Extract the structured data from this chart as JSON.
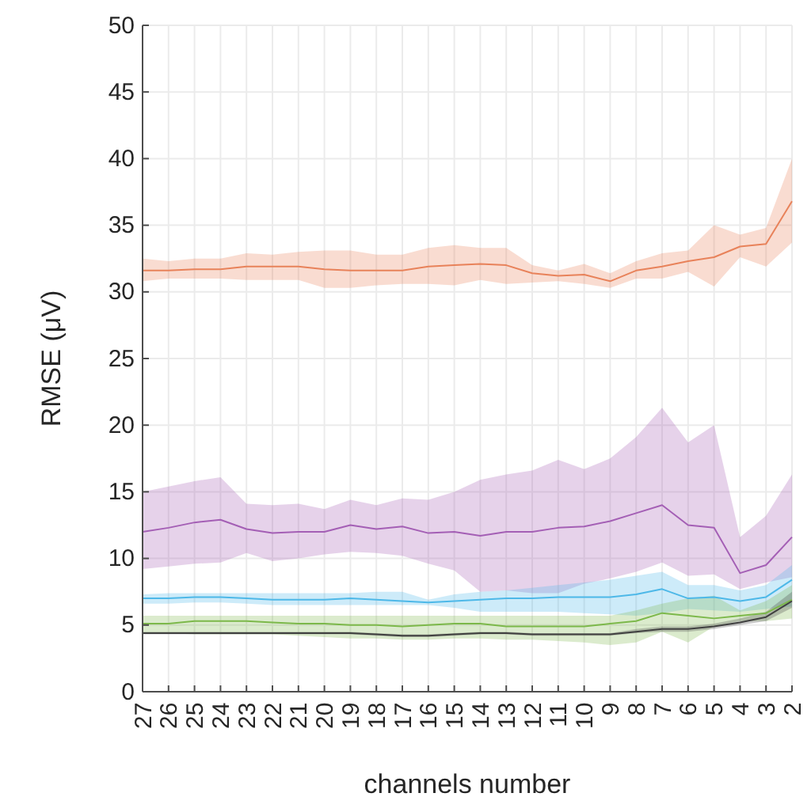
{
  "chart_data": {
    "type": "line",
    "xlabel": "channels number",
    "ylabel": "RMSE (μV)",
    "x": [
      27,
      26,
      25,
      24,
      23,
      22,
      21,
      20,
      19,
      18,
      17,
      16,
      15,
      14,
      13,
      12,
      11,
      10,
      9,
      8,
      7,
      6,
      5,
      4,
      3,
      2
    ],
    "xlim": [
      27,
      2
    ],
    "xticks": [
      27,
      26,
      25,
      24,
      23,
      22,
      21,
      20,
      19,
      18,
      17,
      16,
      15,
      14,
      13,
      12,
      11,
      10,
      9,
      8,
      7,
      6,
      5,
      4,
      3,
      2
    ],
    "ylim": [
      0,
      50
    ],
    "yticks": [
      0,
      5,
      10,
      15,
      20,
      25,
      30,
      35,
      40,
      45,
      50
    ],
    "grid": true,
    "line_style": "solid",
    "series": [
      {
        "color": "#e8825a",
        "values": [
          31.6,
          31.6,
          31.7,
          31.7,
          31.9,
          31.9,
          31.9,
          31.7,
          31.6,
          31.6,
          31.6,
          31.9,
          32.0,
          32.1,
          32.0,
          31.4,
          31.2,
          31.3,
          30.8,
          31.6,
          31.9,
          32.3,
          32.6,
          33.4,
          33.6,
          36.8
        ],
        "upper": [
          32.5,
          32.3,
          32.5,
          32.5,
          32.9,
          32.8,
          33.0,
          33.1,
          33.1,
          32.8,
          32.8,
          33.3,
          33.5,
          33.3,
          33.3,
          32.0,
          31.6,
          32.1,
          31.4,
          32.3,
          32.9,
          33.1,
          35.0,
          34.3,
          34.8,
          40.0
        ],
        "lower": [
          30.8,
          31.0,
          31.0,
          31.0,
          30.9,
          30.9,
          30.9,
          30.3,
          30.3,
          30.5,
          30.6,
          30.6,
          30.5,
          30.9,
          30.6,
          30.7,
          30.8,
          30.6,
          30.3,
          31.0,
          31.0,
          31.5,
          30.4,
          32.6,
          31.9,
          33.7
        ]
      },
      {
        "color": "#a45fb5",
        "values": [
          12.0,
          12.3,
          12.7,
          12.9,
          12.2,
          11.9,
          12.0,
          12.0,
          12.5,
          12.2,
          12.4,
          11.9,
          12.0,
          11.7,
          12.0,
          12.0,
          12.3,
          12.4,
          12.8,
          13.4,
          14.0,
          12.5,
          12.3,
          8.9,
          9.5,
          11.6
        ],
        "upper": [
          15.0,
          15.4,
          15.8,
          16.1,
          14.1,
          14.0,
          14.1,
          13.7,
          14.4,
          14.0,
          14.5,
          14.4,
          15.0,
          15.9,
          16.3,
          16.6,
          17.4,
          16.7,
          17.5,
          19.1,
          21.3,
          18.7,
          20.0,
          11.6,
          13.2,
          16.3
        ],
        "lower": [
          9.2,
          9.4,
          9.6,
          9.7,
          10.4,
          9.8,
          10.0,
          10.3,
          10.5,
          10.4,
          10.2,
          9.6,
          9.1,
          7.5,
          7.6,
          7.4,
          7.4,
          8.1,
          8.5,
          9.0,
          9.7,
          8.7,
          8.8,
          7.7,
          8.2,
          8.6
        ]
      },
      {
        "color": "#4db8e8",
        "values": [
          7.0,
          7.0,
          7.1,
          7.1,
          7.0,
          6.9,
          6.9,
          6.9,
          7.0,
          6.9,
          6.8,
          6.7,
          6.8,
          6.9,
          7.0,
          7.0,
          7.1,
          7.1,
          7.1,
          7.3,
          7.7,
          7.0,
          7.1,
          6.8,
          7.1,
          8.4
        ],
        "upper": [
          7.3,
          7.4,
          7.4,
          7.4,
          7.4,
          7.4,
          7.4,
          7.4,
          7.4,
          7.5,
          7.5,
          6.9,
          7.3,
          7.5,
          7.6,
          7.8,
          8.0,
          8.2,
          8.4,
          8.7,
          9.0,
          8.0,
          8.0,
          7.6,
          8.0,
          9.5
        ],
        "lower": [
          6.6,
          6.6,
          6.7,
          6.7,
          6.6,
          6.5,
          6.5,
          6.5,
          6.5,
          6.5,
          6.5,
          6.5,
          6.3,
          6.0,
          6.0,
          6.0,
          6.0,
          5.9,
          5.8,
          5.7,
          5.9,
          6.2,
          6.1,
          6.0,
          6.2,
          6.4
        ]
      },
      {
        "color": "#7cb84a",
        "values": [
          5.1,
          5.1,
          5.3,
          5.3,
          5.3,
          5.2,
          5.1,
          5.1,
          5.0,
          5.0,
          4.9,
          5.0,
          5.1,
          5.1,
          4.9,
          4.9,
          4.9,
          4.9,
          5.1,
          5.3,
          5.9,
          5.7,
          5.5,
          5.7,
          5.9,
          6.9
        ],
        "upper": [
          5.7,
          5.7,
          5.7,
          5.7,
          5.7,
          5.7,
          5.7,
          5.7,
          5.7,
          5.7,
          5.7,
          5.7,
          5.7,
          5.7,
          5.7,
          5.7,
          5.7,
          5.7,
          5.7,
          6.1,
          6.6,
          7.0,
          7.2,
          6.1,
          6.8,
          8.0
        ],
        "lower": [
          4.4,
          4.4,
          4.3,
          4.3,
          4.3,
          4.3,
          4.2,
          4.1,
          4.0,
          4.0,
          3.9,
          3.9,
          4.0,
          4.0,
          3.9,
          3.9,
          3.8,
          3.7,
          3.5,
          3.7,
          4.5,
          3.7,
          4.9,
          5.3,
          5.3,
          5.5
        ]
      },
      {
        "color": "#404040",
        "values": [
          4.4,
          4.4,
          4.4,
          4.4,
          4.4,
          4.4,
          4.4,
          4.4,
          4.4,
          4.3,
          4.2,
          4.2,
          4.3,
          4.4,
          4.4,
          4.3,
          4.3,
          4.3,
          4.3,
          4.5,
          4.7,
          4.7,
          4.9,
          5.2,
          5.6,
          6.8
        ],
        "upper": [
          4.5,
          4.5,
          4.5,
          4.5,
          4.5,
          4.5,
          4.5,
          4.5,
          4.5,
          4.4,
          4.3,
          4.3,
          4.4,
          4.5,
          4.5,
          4.4,
          4.4,
          4.4,
          4.4,
          4.7,
          4.9,
          4.9,
          5.1,
          5.5,
          6.0,
          7.5
        ],
        "lower": [
          4.3,
          4.3,
          4.3,
          4.3,
          4.3,
          4.3,
          4.3,
          4.3,
          4.3,
          4.2,
          4.1,
          4.1,
          4.2,
          4.3,
          4.3,
          4.2,
          4.2,
          4.2,
          4.2,
          4.4,
          4.5,
          4.5,
          4.7,
          5.0,
          5.3,
          6.3
        ]
      }
    ]
  }
}
